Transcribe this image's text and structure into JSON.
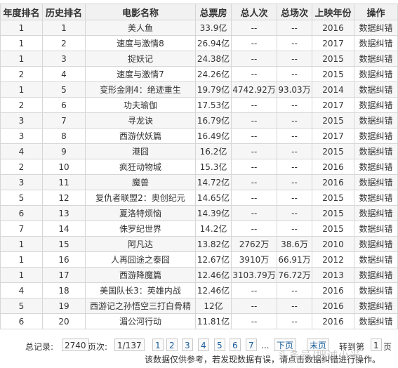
{
  "headers": [
    "年度排名",
    "历史排名",
    "电影名称",
    "总票房",
    "总人次",
    "总场次",
    "上映年份",
    "操作"
  ],
  "rows": [
    {
      "year_rank": "1",
      "hist_rank": "1",
      "name": "美人鱼",
      "box": "33.9亿",
      "viewers": "--",
      "shows": "--",
      "year": "2016",
      "op": "数据纠错"
    },
    {
      "year_rank": "1",
      "hist_rank": "2",
      "name": "速度与激情8",
      "box": "26.94亿",
      "viewers": "--",
      "shows": "--",
      "year": "2017",
      "op": "数据纠错"
    },
    {
      "year_rank": "1",
      "hist_rank": "3",
      "name": "捉妖记",
      "box": "24.38亿",
      "viewers": "--",
      "shows": "--",
      "year": "2015",
      "op": "数据纠错"
    },
    {
      "year_rank": "2",
      "hist_rank": "4",
      "name": "速度与激情7",
      "box": "24.26亿",
      "viewers": "--",
      "shows": "--",
      "year": "2015",
      "op": "数据纠错"
    },
    {
      "year_rank": "1",
      "hist_rank": "5",
      "name": "变形金刚4：绝迹重生",
      "box": "19.79亿",
      "viewers": "4742.92万",
      "shows": "93.03万",
      "year": "2014",
      "op": "数据纠错"
    },
    {
      "year_rank": "2",
      "hist_rank": "6",
      "name": "功夫瑜伽",
      "box": "17.53亿",
      "viewers": "--",
      "shows": "--",
      "year": "2017",
      "op": "数据纠错"
    },
    {
      "year_rank": "3",
      "hist_rank": "7",
      "name": "寻龙诀",
      "box": "16.79亿",
      "viewers": "--",
      "shows": "--",
      "year": "2015",
      "op": "数据纠错"
    },
    {
      "year_rank": "3",
      "hist_rank": "8",
      "name": "西游伏妖篇",
      "box": "16.49亿",
      "viewers": "--",
      "shows": "--",
      "year": "2017",
      "op": "数据纠错"
    },
    {
      "year_rank": "4",
      "hist_rank": "9",
      "name": "港囧",
      "box": "16.2亿",
      "viewers": "--",
      "shows": "--",
      "year": "2015",
      "op": "数据纠错"
    },
    {
      "year_rank": "2",
      "hist_rank": "10",
      "name": "疯狂动物城",
      "box": "15.3亿",
      "viewers": "--",
      "shows": "--",
      "year": "2016",
      "op": "数据纠错"
    },
    {
      "year_rank": "3",
      "hist_rank": "11",
      "name": "魔兽",
      "box": "14.72亿",
      "viewers": "--",
      "shows": "--",
      "year": "2016",
      "op": "数据纠错"
    },
    {
      "year_rank": "5",
      "hist_rank": "12",
      "name": "复仇者联盟2：奥创纪元",
      "box": "14.65亿",
      "viewers": "--",
      "shows": "--",
      "year": "2015",
      "op": "数据纠错"
    },
    {
      "year_rank": "6",
      "hist_rank": "13",
      "name": "夏洛特烦恼",
      "box": "14.39亿",
      "viewers": "--",
      "shows": "--",
      "year": "2015",
      "op": "数据纠错"
    },
    {
      "year_rank": "7",
      "hist_rank": "14",
      "name": "侏罗纪世界",
      "box": "14.2亿",
      "viewers": "--",
      "shows": "--",
      "year": "2015",
      "op": "数据纠错"
    },
    {
      "year_rank": "1",
      "hist_rank": "15",
      "name": "阿凡达",
      "box": "13.82亿",
      "viewers": "2762万",
      "shows": "38.6万",
      "year": "2010",
      "op": "数据纠错"
    },
    {
      "year_rank": "1",
      "hist_rank": "16",
      "name": "人再囧途之泰囧",
      "box": "12.67亿",
      "viewers": "3910万",
      "shows": "66.91万",
      "year": "2012",
      "op": "数据纠错"
    },
    {
      "year_rank": "1",
      "hist_rank": "17",
      "name": "西游降魔篇",
      "box": "12.46亿",
      "viewers": "3103.79万",
      "shows": "76.72万",
      "year": "2013",
      "op": "数据纠错"
    },
    {
      "year_rank": "4",
      "hist_rank": "18",
      "name": "美国队长3：英雄内战",
      "box": "12.46亿",
      "viewers": "--",
      "shows": "--",
      "year": "2016",
      "op": "数据纠错"
    },
    {
      "year_rank": "5",
      "hist_rank": "19",
      "name": "西游记之孙悟空三打白骨精",
      "box": "12亿",
      "viewers": "--",
      "shows": "--",
      "year": "2016",
      "op": "数据纠错"
    },
    {
      "year_rank": "6",
      "hist_rank": "20",
      "name": "湄公河行动",
      "box": "11.81亿",
      "viewers": "--",
      "shows": "--",
      "year": "2016",
      "op": "数据纠错"
    }
  ],
  "pager": {
    "total_label": "总记录:",
    "total_value": "2740",
    "pages_label": "页次:",
    "pages_value": "1/137",
    "page_numbers": [
      "1",
      "2",
      "3",
      "4",
      "5",
      "6",
      "7"
    ],
    "ellipsis": "...",
    "next": "下页",
    "last": "末页",
    "goto_label": "转到第",
    "goto_value": "1",
    "goto_suffix": "页"
  },
  "note": "该数据仅供参考，若发现数据有误，请点击数据纠错进行操作。",
  "watermark": "头条号/拙诚小米"
}
